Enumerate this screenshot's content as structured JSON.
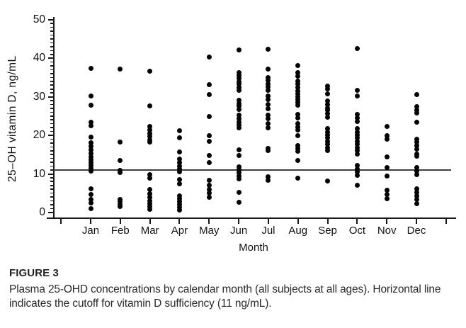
{
  "figure": {
    "label": "FIGURE 3",
    "caption": "Plasma 25-OHD concentrations by calendar month (all subjects at all ages). Horizontal line indicates the cutoff for vitamin D sufficiency (11 ng/mL)."
  },
  "colors": {
    "background": "#ffffff",
    "dot": "#030303",
    "axis": "#1a1a1a",
    "cutoff_line": "#3d3d3d",
    "text": "#111111"
  },
  "chart_data": {
    "type": "scatter",
    "subtype": "strip-plot-by-category",
    "title": "",
    "xlabel": "Month",
    "ylabel": "25–OH vitamin D, ng/mL",
    "ylim": [
      0,
      50
    ],
    "yticks_major": [
      0,
      10,
      20,
      30,
      40,
      50
    ],
    "ytick_minor_step": 1,
    "grid": false,
    "legend": false,
    "cutoff_line": {
      "value": 11,
      "meaning": "cutoff for vitamin D sufficiency (11 ng/mL)"
    },
    "categories": [
      "Jan",
      "Feb",
      "Mar",
      "Apr",
      "May",
      "Jun",
      "Jul",
      "Aug",
      "Sep",
      "Oct",
      "Nov",
      "Dec"
    ],
    "series": [
      {
        "month": "Jan",
        "values": [
          37.5,
          30.3,
          27.8,
          23.5,
          22.6,
          19.6,
          18.1,
          17.2,
          16.3,
          15.4,
          14.5,
          13.7,
          13.0,
          12.2,
          11.5,
          10.8,
          6.2,
          4.6,
          3.4,
          2.4,
          1.0
        ]
      },
      {
        "month": "Feb",
        "values": [
          37.2,
          18.3,
          13.6,
          11.0,
          10.4,
          3.4,
          2.8,
          2.2,
          1.6
        ]
      },
      {
        "month": "Mar",
        "values": [
          36.6,
          27.7,
          22.3,
          21.4,
          20.5,
          19.7,
          18.9,
          18.2,
          9.9,
          9.0,
          5.9,
          4.8,
          3.9,
          3.1,
          2.3,
          1.5,
          0.9
        ]
      },
      {
        "month": "Apr",
        "values": [
          21.3,
          19.4,
          15.7,
          13.9,
          13.0,
          12.1,
          11.3,
          10.6,
          8.5,
          7.4,
          4.4,
          3.6,
          2.8,
          2.1,
          1.4,
          0.7
        ]
      },
      {
        "month": "May",
        "values": [
          40.3,
          33.2,
          30.6,
          25.0,
          20.0,
          18.5,
          14.8,
          13.0,
          8.3,
          7.1,
          5.9,
          5.0,
          3.9
        ]
      },
      {
        "month": "Jun",
        "values": [
          42.2,
          36.3,
          35.5,
          34.8,
          34.0,
          33.3,
          32.5,
          31.8,
          29.1,
          28.3,
          27.6,
          26.8,
          25.2,
          24.4,
          23.5,
          22.7,
          22.0,
          16.3,
          14.8,
          11.9,
          11.1,
          10.4,
          9.5,
          8.7,
          5.2,
          2.6
        ]
      },
      {
        "month": "Jul",
        "values": [
          42.3,
          37.2,
          35.0,
          34.2,
          33.4,
          32.6,
          31.8,
          30.2,
          29.4,
          28.0,
          27.0,
          25.2,
          24.3,
          23.0,
          22.0,
          16.7,
          16.0,
          9.3,
          8.4
        ]
      },
      {
        "month": "Aug",
        "values": [
          38.1,
          36.3,
          35.4,
          34.1,
          33.3,
          32.4,
          31.5,
          30.7,
          30.0,
          29.3,
          28.5,
          27.8,
          25.4,
          24.6,
          23.1,
          22.2,
          21.5,
          20.0,
          17.4,
          16.7,
          15.9,
          13.5,
          8.9
        ]
      },
      {
        "month": "Sep",
        "values": [
          32.8,
          32.0,
          30.7,
          28.9,
          28.0,
          27.2,
          26.5,
          25.6,
          24.8,
          21.7,
          20.9,
          20.2,
          19.4,
          18.5,
          17.8,
          16.9,
          16.1,
          8.1
        ]
      },
      {
        "month": "Oct",
        "values": [
          42.6,
          31.7,
          30.2,
          25.4,
          24.6,
          23.7,
          21.7,
          20.9,
          20.2,
          19.4,
          18.5,
          17.8,
          16.9,
          16.1,
          15.2,
          12.2,
          11.3,
          10.6,
          9.6,
          7.0
        ]
      },
      {
        "month": "Nov",
        "values": [
          22.3,
          20.0,
          19.1,
          14.4,
          11.7,
          9.4,
          5.7,
          4.6,
          3.5
        ]
      },
      {
        "month": "Dec",
        "values": [
          30.6,
          27.5,
          26.6,
          25.8,
          23.5,
          19.1,
          18.2,
          17.3,
          16.4,
          15.2,
          14.6,
          11.6,
          10.7,
          9.8,
          6.1,
          5.2,
          4.3,
          3.4,
          2.3
        ]
      }
    ]
  }
}
